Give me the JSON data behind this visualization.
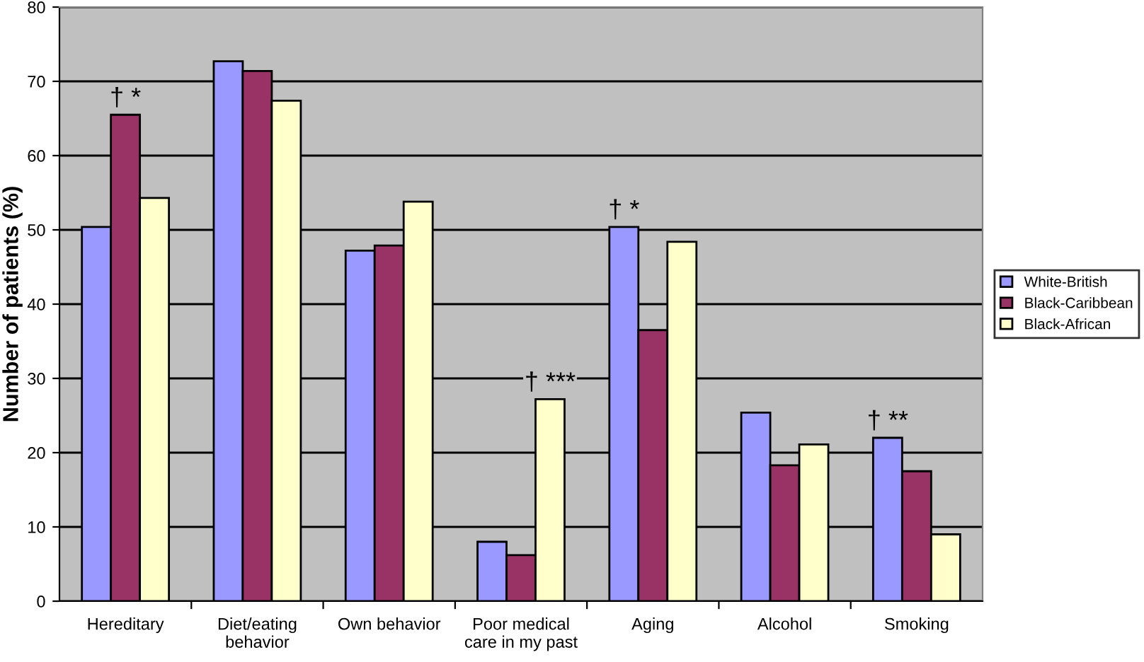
{
  "chart_data": {
    "type": "bar",
    "ylabel": "Number of patients (%)",
    "categories": [
      "Hereditary",
      "Diet/eating\nbehavior",
      "Own behavior",
      "Poor medical\ncare in my past",
      "Aging",
      "Alcohol",
      "Smoking"
    ],
    "series": [
      {
        "name": "White-British",
        "color": "#9999ff",
        "values": [
          50.4,
          72.7,
          47.2,
          8.0,
          50.4,
          25.4,
          22.0
        ],
        "value_labels": [
          null,
          null,
          null,
          null,
          "† *",
          null,
          "† **"
        ]
      },
      {
        "name": "Black-Caribbean",
        "color": "#993366",
        "values": [
          65.5,
          71.4,
          47.9,
          6.2,
          36.5,
          18.3,
          17.5
        ],
        "value_labels": [
          "† *",
          null,
          null,
          null,
          null,
          null,
          null
        ]
      },
      {
        "name": "Black-African",
        "color": "#ffffcc",
        "values": [
          54.3,
          67.4,
          53.8,
          27.2,
          48.4,
          21.1,
          9.0
        ],
        "value_labels": [
          null,
          null,
          null,
          "† ***",
          null,
          null,
          null
        ]
      }
    ],
    "ylim": [
      0,
      80
    ],
    "yticks": [
      0,
      10,
      20,
      30,
      40,
      50,
      60,
      70,
      80
    ],
    "grid": "y",
    "legend": "right"
  }
}
